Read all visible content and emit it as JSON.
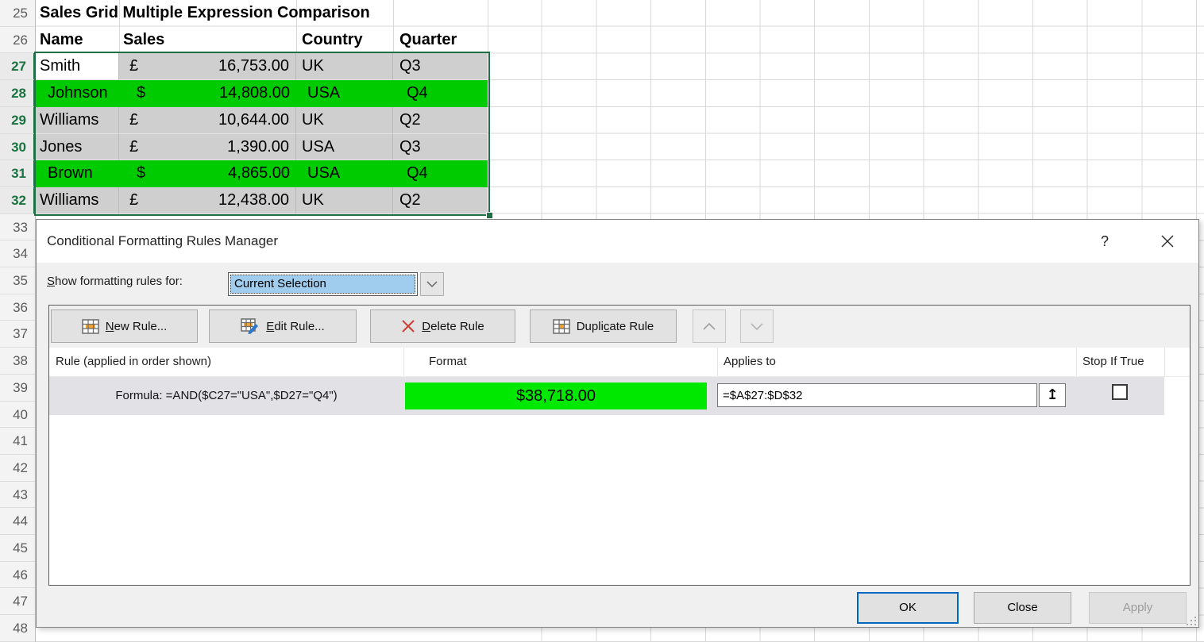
{
  "sheet": {
    "title": "Sales Grid Multiple Expression Comparison",
    "col_headers": {
      "name": "Name",
      "sales": "Sales",
      "country": "Country",
      "quarter": "Quarter"
    },
    "row_numbers": [
      "25",
      "26",
      "27",
      "28",
      "29",
      "30",
      "31",
      "32",
      "33",
      "34",
      "35",
      "36",
      "37",
      "38",
      "39",
      "40",
      "41",
      "42",
      "43",
      "44",
      "45",
      "46",
      "47",
      "48"
    ],
    "selected_rows": [
      "27",
      "28",
      "29",
      "30",
      "31",
      "32"
    ],
    "rows": [
      {
        "row": "27",
        "name": "Smith",
        "currency": "£",
        "amount": "16,753.00",
        "country": "UK",
        "quarter": "Q3",
        "style": "gray",
        "active": true
      },
      {
        "row": "28",
        "name": "Johnson",
        "currency": "$",
        "amount": "14,808.00",
        "country": "USA",
        "quarter": "Q4",
        "style": "green",
        "active": false
      },
      {
        "row": "29",
        "name": "Williams",
        "currency": "£",
        "amount": "10,644.00",
        "country": "UK",
        "quarter": "Q2",
        "style": "gray",
        "active": false
      },
      {
        "row": "30",
        "name": "Jones",
        "currency": "£",
        "amount": "1,390.00",
        "country": "USA",
        "quarter": "Q3",
        "style": "gray",
        "active": false
      },
      {
        "row": "31",
        "name": "Brown",
        "currency": "$",
        "amount": "4,865.00",
        "country": "USA",
        "quarter": "Q4",
        "style": "green",
        "active": false
      },
      {
        "row": "32",
        "name": "Williams",
        "currency": "£",
        "amount": "12,438.00",
        "country": "UK",
        "quarter": "Q2",
        "style": "gray",
        "active": false
      }
    ]
  },
  "dialog": {
    "title": "Conditional Formatting Rules Manager",
    "help_glyph": "?",
    "show_rules": {
      "label": "Show formatting rules for:",
      "accel": "S"
    },
    "combo_value": "Current Selection",
    "toolbar": {
      "new_rule": {
        "label": "New Rule...",
        "accel": "N"
      },
      "edit_rule": {
        "label": "Edit Rule...",
        "accel": "E"
      },
      "delete_rule": {
        "label": "Delete Rule",
        "accel": "D"
      },
      "duplicate_rule": {
        "label": "Duplicate Rule",
        "accel": "c"
      }
    },
    "list": {
      "col_rule": "Rule (applied in order shown)",
      "col_format": "Format",
      "col_applies": "Applies to",
      "col_stop": "Stop If True"
    },
    "rule": {
      "formula": "Formula: =AND($C27=\"USA\",$D27=\"Q4\")",
      "format_preview": "$38,718.00",
      "applies_to": "=$A$27:$D$32",
      "stop_if_true": false
    },
    "buttons": {
      "ok": "OK",
      "close": "Close",
      "apply": "Apply"
    }
  },
  "colors": {
    "sheet_green": "#00ca00",
    "preview_green": "#00e800",
    "selection_gray": "#cfcfcf",
    "selection_border_green": "#1f7145",
    "combo_highlight_blue": "#a0ccee",
    "ok_focus_blue": "#0067c0"
  }
}
